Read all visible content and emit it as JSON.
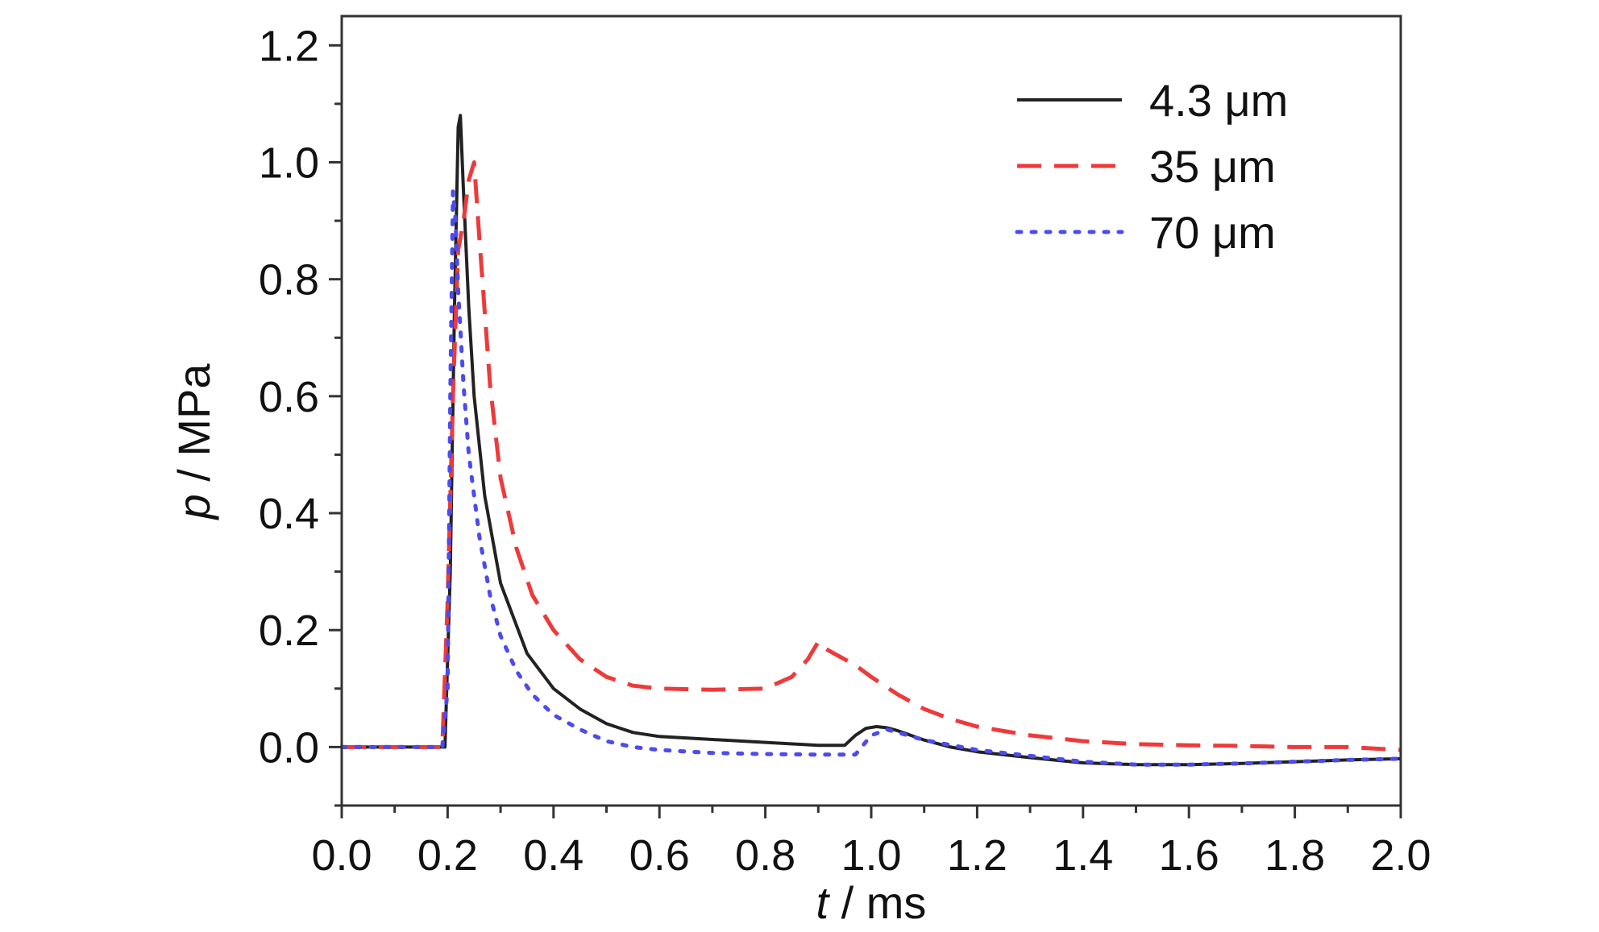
{
  "chart_data": {
    "type": "line",
    "title": "",
    "xlabel": {
      "var": "t",
      "unit": " / ms"
    },
    "ylabel": {
      "var": "p",
      "unit": " / MPa"
    },
    "xlim": [
      0.0,
      2.0
    ],
    "ylim": [
      -0.1,
      1.25
    ],
    "x_ticks": [
      0.0,
      0.2,
      0.4,
      0.6,
      0.8,
      1.0,
      1.2,
      1.4,
      1.6,
      1.8,
      2.0
    ],
    "x_tick_labels": [
      "0.0",
      "0.2",
      "0.4",
      "0.6",
      "0.8",
      "1.0",
      "1.2",
      "1.4",
      "1.6",
      "1.8",
      "2.0"
    ],
    "y_ticks": [
      0.0,
      0.2,
      0.4,
      0.6,
      0.8,
      1.0,
      1.2
    ],
    "y_tick_labels": [
      "0.0",
      "0.2",
      "0.4",
      "0.6",
      "0.8",
      "1.0",
      "1.2"
    ],
    "grid": false,
    "legend_position": "top-right",
    "series": [
      {
        "name": "4.3 μm",
        "color": "#222222",
        "style": "solid",
        "x": [
          0.0,
          0.195,
          0.205,
          0.213,
          0.22,
          0.224,
          0.23,
          0.24,
          0.25,
          0.27,
          0.3,
          0.35,
          0.4,
          0.45,
          0.5,
          0.55,
          0.6,
          0.7,
          0.8,
          0.9,
          0.95,
          0.97,
          0.99,
          1.01,
          1.03,
          1.05,
          1.1,
          1.15,
          1.2,
          1.3,
          1.4,
          1.5,
          1.6,
          1.7,
          1.8,
          1.9,
          2.0
        ],
        "y": [
          0.0,
          0.0,
          0.3,
          0.75,
          1.06,
          1.08,
          0.95,
          0.75,
          0.6,
          0.43,
          0.28,
          0.16,
          0.1,
          0.065,
          0.04,
          0.025,
          0.018,
          0.013,
          0.008,
          0.003,
          0.003,
          0.02,
          0.032,
          0.035,
          0.033,
          0.028,
          0.012,
          0.0,
          -0.008,
          -0.018,
          -0.027,
          -0.03,
          -0.03,
          -0.028,
          -0.025,
          -0.022,
          -0.02
        ]
      },
      {
        "name": "35 μm",
        "color": "#ee3a3a",
        "style": "dashed",
        "x": [
          0.0,
          0.19,
          0.2,
          0.21,
          0.22,
          0.23,
          0.24,
          0.25,
          0.26,
          0.28,
          0.3,
          0.33,
          0.36,
          0.4,
          0.45,
          0.5,
          0.55,
          0.6,
          0.7,
          0.8,
          0.85,
          0.88,
          0.9,
          0.91,
          0.93,
          0.97,
          1.0,
          1.05,
          1.1,
          1.15,
          1.2,
          1.3,
          1.4,
          1.5,
          1.6,
          1.7,
          1.8,
          1.9,
          2.0
        ],
        "y": [
          0.0,
          0.0,
          0.25,
          0.6,
          0.85,
          0.9,
          0.97,
          1.0,
          0.87,
          0.62,
          0.46,
          0.34,
          0.26,
          0.2,
          0.15,
          0.12,
          0.105,
          0.1,
          0.098,
          0.1,
          0.12,
          0.15,
          0.18,
          0.17,
          0.16,
          0.14,
          0.12,
          0.09,
          0.065,
          0.048,
          0.035,
          0.02,
          0.01,
          0.005,
          0.003,
          0.002,
          0.0,
          0.0,
          -0.005
        ]
      },
      {
        "name": "70 μm",
        "color": "#4b4bee",
        "style": "dotted",
        "x": [
          0.0,
          0.19,
          0.2,
          0.205,
          0.21,
          0.215,
          0.22,
          0.23,
          0.24,
          0.26,
          0.28,
          0.3,
          0.33,
          0.36,
          0.4,
          0.45,
          0.5,
          0.55,
          0.6,
          0.7,
          0.8,
          0.9,
          0.97,
          1.0,
          1.03,
          1.1,
          1.2,
          1.3,
          1.4,
          1.5,
          1.6,
          1.7,
          1.8,
          1.9,
          2.0
        ],
        "y": [
          0.0,
          0.0,
          0.1,
          0.6,
          0.95,
          0.9,
          0.78,
          0.62,
          0.5,
          0.36,
          0.26,
          0.19,
          0.13,
          0.09,
          0.055,
          0.03,
          0.01,
          0.0,
          -0.005,
          -0.01,
          -0.012,
          -0.013,
          -0.013,
          0.02,
          0.03,
          0.012,
          -0.005,
          -0.015,
          -0.025,
          -0.03,
          -0.03,
          -0.028,
          -0.025,
          -0.022,
          -0.02
        ]
      }
    ]
  }
}
